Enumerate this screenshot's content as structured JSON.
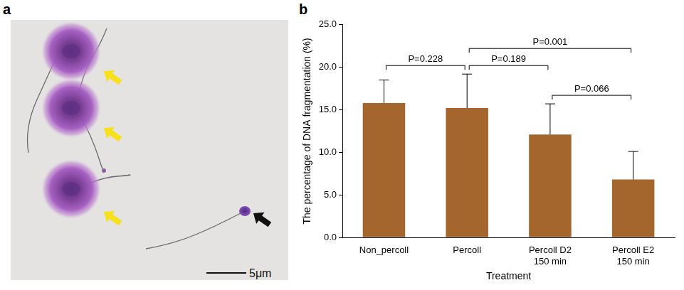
{
  "panels": {
    "a": {
      "letter": "a",
      "scale_bar": "5μm"
    },
    "b": {
      "letter": "b"
    }
  },
  "chart_data": {
    "type": "bar",
    "categories": [
      "Non_percoll",
      "Percoll",
      "Percoll D2 150 min",
      "Percoll E2 150 min"
    ],
    "values": [
      15.8,
      15.2,
      12.1,
      6.8
    ],
    "errors": [
      2.7,
      4.0,
      3.6,
      3.3
    ],
    "color": "#a5662e",
    "x_label": "Treatment",
    "y_label": "The percentage of DNA fragmentation (%)",
    "ylim": [
      0,
      25
    ],
    "yticks": [
      {
        "value": 0,
        "label": "0.0"
      },
      {
        "value": 5,
        "label": "5.0"
      },
      {
        "value": 10,
        "label": "10.0"
      },
      {
        "value": 15,
        "label": "15.0"
      },
      {
        "value": 20,
        "label": "20.0"
      },
      {
        "value": 25,
        "label": "25.0"
      }
    ],
    "grid": false,
    "annotations": [
      {
        "text": "P=0.228",
        "between": [
          "Non_percoll",
          "Percoll"
        ]
      },
      {
        "text": "P=0.189",
        "between": [
          "Percoll",
          "Percoll D2 150 min"
        ]
      },
      {
        "text": "P=0.066",
        "between": [
          "Percoll D2 150 min",
          "Percoll E2 150 min"
        ]
      },
      {
        "text": "P=0.001",
        "between": [
          "Percoll",
          "Percoll E2 150 min"
        ]
      }
    ]
  }
}
